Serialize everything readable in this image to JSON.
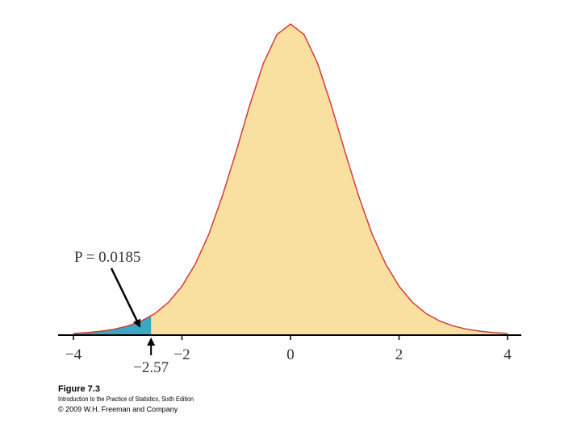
{
  "chart_data": {
    "type": "area",
    "x": [
      -4,
      -3.75,
      -3.5,
      -3.25,
      -3,
      -2.75,
      -2.5,
      -2.25,
      -2,
      -1.75,
      -1.5,
      -1.25,
      -1,
      -0.75,
      -0.5,
      -0.25,
      0,
      0.25,
      0.5,
      0.75,
      1,
      1.25,
      1.5,
      1.75,
      2,
      2.25,
      2.5,
      2.75,
      3,
      3.25,
      3.5,
      3.75,
      4
    ],
    "values": [
      0.002,
      0.0031,
      0.0048,
      0.0074,
      0.0114,
      0.0176,
      0.0269,
      0.0409,
      0.0612,
      0.0895,
      0.127,
      0.175,
      0.23,
      0.288,
      0.34,
      0.376,
      0.389,
      0.376,
      0.34,
      0.288,
      0.23,
      0.175,
      0.127,
      0.0895,
      0.0612,
      0.0409,
      0.0269,
      0.0176,
      0.0114,
      0.0074,
      0.0048,
      0.0031,
      0.002
    ],
    "color": "#f9e0a0",
    "line_color": "#d03a3a",
    "shade_color": "#3aa8c0",
    "xlim": [
      -4,
      4
    ],
    "ylim": [
      0,
      0.4
    ],
    "xticks": [
      {
        "value": -4,
        "label": "−4"
      },
      {
        "value": -2,
        "label": "−2"
      },
      0,
      2,
      4
    ],
    "cutoff": {
      "value": -2.57,
      "label": "−2.57"
    },
    "annotation": "P = 0.0185"
  },
  "caption": {
    "figure": "Figure 7.3",
    "book": "Introduction to the Practice of Statistics, Sixth Edition",
    "copyright": "© 2009 W.H. Freeman and Company"
  }
}
